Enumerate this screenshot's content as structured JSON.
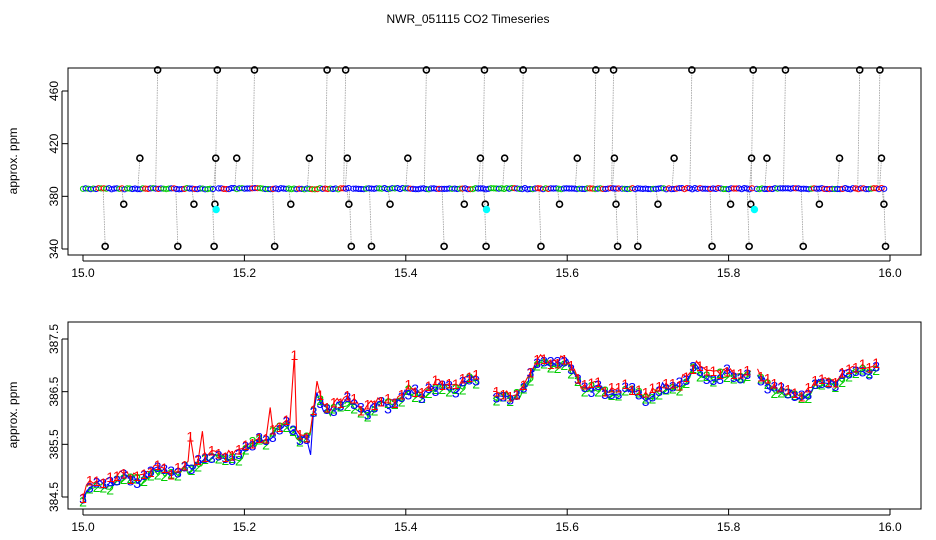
{
  "figure": {
    "title": "NWR_051115  CO2 Timeseries"
  },
  "colors": {
    "series1": "#ff0000",
    "series2": "#00cd00",
    "series3": "#0000ff",
    "cyan": "#00ffff",
    "outlier": "#000000",
    "spike": "#9a9a9a"
  },
  "chart_data": [
    {
      "type": "scatter",
      "ylabel": "approx. ppm",
      "xlabel": "",
      "xlim": [
        15.0,
        16.0
      ],
      "ylim": [
        340,
        476
      ],
      "xticks": [
        "15.0",
        "15.2",
        "15.4",
        "15.6",
        "15.8",
        "16.0"
      ],
      "yticks": [
        "340",
        "380",
        "420",
        "460"
      ],
      "baseline_ppm": 385.8,
      "baseline_segments": [
        [
          15.0,
          15.163
        ],
        [
          15.168,
          15.33
        ],
        [
          15.335,
          15.665
        ],
        [
          15.668,
          15.83
        ],
        [
          15.835,
          15.995
        ]
      ],
      "outlier_levels": [
        342,
        374,
        409,
        476
      ],
      "outliers": [
        {
          "x": 15.025,
          "y": 342
        },
        {
          "x": 15.048,
          "y": 374
        },
        {
          "x": 15.068,
          "y": 409
        },
        {
          "x": 15.09,
          "y": 476
        },
        {
          "x": 15.115,
          "y": 342
        },
        {
          "x": 15.135,
          "y": 374
        },
        {
          "x": 15.16,
          "y": 342
        },
        {
          "x": 15.161,
          "y": 374
        },
        {
          "x": 15.162,
          "y": 409
        },
        {
          "x": 15.164,
          "y": 476
        },
        {
          "x": 15.188,
          "y": 409
        },
        {
          "x": 15.21,
          "y": 476
        },
        {
          "x": 15.235,
          "y": 342
        },
        {
          "x": 15.255,
          "y": 374
        },
        {
          "x": 15.278,
          "y": 409
        },
        {
          "x": 15.3,
          "y": 476
        },
        {
          "x": 15.323,
          "y": 476
        },
        {
          "x": 15.325,
          "y": 409
        },
        {
          "x": 15.327,
          "y": 374
        },
        {
          "x": 15.33,
          "y": 342
        },
        {
          "x": 15.355,
          "y": 342
        },
        {
          "x": 15.378,
          "y": 374
        },
        {
          "x": 15.4,
          "y": 409
        },
        {
          "x": 15.423,
          "y": 476
        },
        {
          "x": 15.445,
          "y": 342
        },
        {
          "x": 15.47,
          "y": 374
        },
        {
          "x": 15.49,
          "y": 409
        },
        {
          "x": 15.495,
          "y": 476
        },
        {
          "x": 15.496,
          "y": 374
        },
        {
          "x": 15.497,
          "y": 342
        },
        {
          "x": 15.52,
          "y": 409
        },
        {
          "x": 15.543,
          "y": 476
        },
        {
          "x": 15.565,
          "y": 342
        },
        {
          "x": 15.588,
          "y": 374
        },
        {
          "x": 15.61,
          "y": 409
        },
        {
          "x": 15.633,
          "y": 476
        },
        {
          "x": 15.655,
          "y": 476
        },
        {
          "x": 15.656,
          "y": 409
        },
        {
          "x": 15.658,
          "y": 374
        },
        {
          "x": 15.66,
          "y": 342
        },
        {
          "x": 15.685,
          "y": 342
        },
        {
          "x": 15.71,
          "y": 374
        },
        {
          "x": 15.73,
          "y": 409
        },
        {
          "x": 15.752,
          "y": 476
        },
        {
          "x": 15.777,
          "y": 342
        },
        {
          "x": 15.8,
          "y": 374
        },
        {
          "x": 15.823,
          "y": 342
        },
        {
          "x": 15.825,
          "y": 374
        },
        {
          "x": 15.826,
          "y": 409
        },
        {
          "x": 15.828,
          "y": 476
        },
        {
          "x": 15.845,
          "y": 409
        },
        {
          "x": 15.868,
          "y": 476
        },
        {
          "x": 15.89,
          "y": 342
        },
        {
          "x": 15.91,
          "y": 374
        },
        {
          "x": 15.935,
          "y": 409
        },
        {
          "x": 15.96,
          "y": 476
        },
        {
          "x": 15.985,
          "y": 476
        },
        {
          "x": 15.987,
          "y": 409
        },
        {
          "x": 15.99,
          "y": 374
        },
        {
          "x": 15.992,
          "y": 342
        }
      ],
      "cyan_points": [
        {
          "x": 15.165,
          "y": 370
        },
        {
          "x": 15.5,
          "y": 370
        },
        {
          "x": 15.832,
          "y": 370
        }
      ]
    },
    {
      "type": "line",
      "ylabel": "approx. ppm",
      "xlabel": "",
      "xlim": [
        15.0,
        16.0
      ],
      "ylim": [
        384.3,
        387.6
      ],
      "xticks": [
        "15.0",
        "15.2",
        "15.4",
        "15.6",
        "15.8",
        "16.0"
      ],
      "yticks": [
        "384.5",
        "385.5",
        "386.5",
        "387.5"
      ],
      "gaps": [
        [
          15.3,
          15.3
        ],
        [
          15.49,
          15.505
        ],
        [
          15.665,
          15.668
        ],
        [
          15.83,
          15.835
        ]
      ],
      "trend_knots": [
        {
          "x": 15.0,
          "y": 384.5
        },
        {
          "x": 15.01,
          "y": 384.7
        },
        {
          "x": 15.03,
          "y": 384.8
        },
        {
          "x": 15.06,
          "y": 384.85
        },
        {
          "x": 15.1,
          "y": 385.0
        },
        {
          "x": 15.13,
          "y": 385.0
        },
        {
          "x": 15.15,
          "y": 385.3
        },
        {
          "x": 15.17,
          "y": 385.25
        },
        {
          "x": 15.2,
          "y": 385.35
        },
        {
          "x": 15.22,
          "y": 385.6
        },
        {
          "x": 15.25,
          "y": 385.85
        },
        {
          "x": 15.28,
          "y": 385.6
        },
        {
          "x": 15.29,
          "y": 386.4
        },
        {
          "x": 15.3,
          "y": 386.2
        },
        {
          "x": 15.33,
          "y": 386.3
        },
        {
          "x": 15.35,
          "y": 386.15
        },
        {
          "x": 15.38,
          "y": 386.3
        },
        {
          "x": 15.4,
          "y": 386.45
        },
        {
          "x": 15.43,
          "y": 386.55
        },
        {
          "x": 15.46,
          "y": 386.6
        },
        {
          "x": 15.49,
          "y": 386.75
        },
        {
          "x": 15.5,
          "y": 386.45
        },
        {
          "x": 15.53,
          "y": 386.4
        },
        {
          "x": 15.55,
          "y": 386.65
        },
        {
          "x": 15.57,
          "y": 387.15
        },
        {
          "x": 15.6,
          "y": 387.0
        },
        {
          "x": 15.62,
          "y": 386.6
        },
        {
          "x": 15.65,
          "y": 386.5
        },
        {
          "x": 15.67,
          "y": 386.5
        },
        {
          "x": 15.7,
          "y": 386.45
        },
        {
          "x": 15.73,
          "y": 386.6
        },
        {
          "x": 15.76,
          "y": 386.9
        },
        {
          "x": 15.79,
          "y": 386.8
        },
        {
          "x": 15.83,
          "y": 386.85
        },
        {
          "x": 15.85,
          "y": 386.65
        },
        {
          "x": 15.88,
          "y": 386.4
        },
        {
          "x": 15.91,
          "y": 386.6
        },
        {
          "x": 15.95,
          "y": 386.85
        },
        {
          "x": 15.985,
          "y": 387.0
        }
      ],
      "spikes": [
        {
          "series": "1",
          "x": 15.133,
          "y": 385.65
        },
        {
          "series": "1",
          "x": 15.148,
          "y": 385.75
        },
        {
          "series": "1",
          "x": 15.232,
          "y": 386.2
        },
        {
          "series": "1",
          "x": 15.262,
          "y": 387.2
        },
        {
          "series": "1",
          "x": 15.29,
          "y": 386.7
        },
        {
          "series": "3",
          "x": 15.282,
          "y": 385.3
        }
      ],
      "series": [
        {
          "name": "1",
          "marker": "1"
        },
        {
          "name": "2",
          "marker": "2"
        },
        {
          "name": "3",
          "marker": "3"
        }
      ]
    }
  ]
}
